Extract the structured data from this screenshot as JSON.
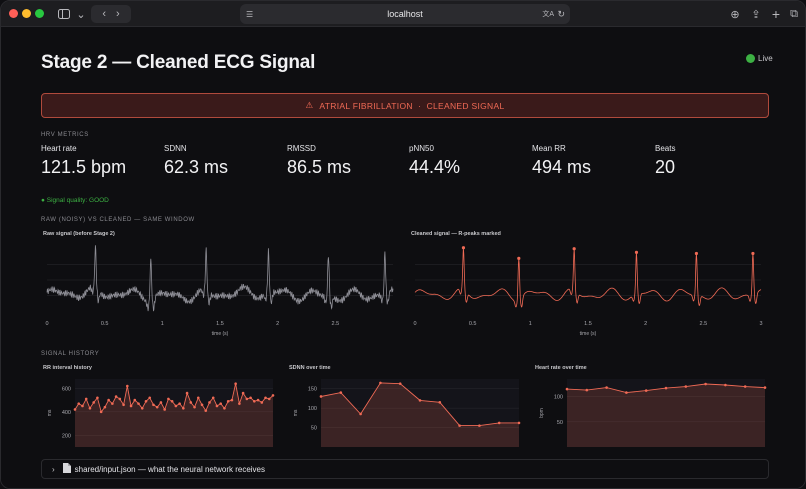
{
  "browser": {
    "url": "localhost",
    "traffic_lights": [
      "#ff5f57",
      "#febc2e",
      "#28c840"
    ]
  },
  "page": {
    "title": "Stage 2 — Cleaned ECG Signal",
    "live_label": "Live",
    "banner": {
      "icon": "⚠",
      "text": "ATRIAL FIBRILLATION  ·  CLEANED SIGNAL"
    },
    "hrv_section": "HRV METRICS",
    "metrics": [
      {
        "label": "Heart rate",
        "value": "121.5 bpm"
      },
      {
        "label": "SDNN",
        "value": "62.3 ms"
      },
      {
        "label": "RMSSD",
        "value": "86.5 ms"
      },
      {
        "label": "pNN50",
        "value": "44.4%"
      },
      {
        "label": "Mean RR",
        "value": "494 ms"
      },
      {
        "label": "Beats",
        "value": "20"
      }
    ],
    "signal_quality": "● Signal quality: GOOD",
    "raw_section": "RAW (NOISY) VS CLEANED — SAME WINDOW",
    "history_section": "SIGNAL HISTORY",
    "expander_label": "shared/input.json — what the neural network receives",
    "colors": {
      "accent": "#f06a55",
      "banner_bg": "#3a1a1a",
      "raw_line": "#8e8e96",
      "good": "#3cb043"
    }
  },
  "chart_data": [
    {
      "type": "line",
      "title": "Raw signal (before Stage 2)",
      "xlabel": "time (s)",
      "x_ticks": [
        "0",
        "0.5",
        "1",
        "1.5",
        "2",
        "2.5"
      ],
      "xlim": [
        0,
        3
      ],
      "series": [
        {
          "peaks_s": [
            0.42,
            0.9,
            1.38,
            1.92,
            2.44,
            2.93
          ]
        }
      ]
    },
    {
      "type": "line",
      "title": "Cleaned signal — R-peaks marked",
      "xlabel": "time (s)",
      "x_ticks": [
        "0",
        "0.5",
        "1",
        "1.5",
        "2",
        "2.5",
        "3"
      ],
      "xlim": [
        0,
        3
      ],
      "series": [
        {
          "peaks_s": [
            0.42,
            0.9,
            1.38,
            1.92,
            2.44,
            2.93
          ]
        }
      ]
    },
    {
      "type": "area",
      "title": "RR interval history",
      "ylabel": "ms",
      "y_ticks": [
        "200",
        "400",
        "600"
      ],
      "ylim": [
        100,
        680
      ],
      "series": [
        {
          "values": [
            420,
            470,
            450,
            510,
            430,
            480,
            520,
            400,
            440,
            500,
            470,
            530,
            510,
            460,
            620,
            450,
            500,
            470,
            430,
            490,
            520,
            460,
            440,
            480,
            420,
            510,
            490,
            450,
            470,
            430,
            560,
            480,
            440,
            520,
            460,
            410,
            480,
            520,
            450,
            470,
            430,
            490,
            500,
            640,
            470,
            560,
            510,
            520,
            490,
            500,
            480,
            520,
            510,
            540
          ]
        }
      ]
    },
    {
      "type": "area",
      "title": "SDNN over time",
      "ylabel": "ms",
      "y_ticks": [
        "50",
        "100",
        "150"
      ],
      "ylim": [
        0,
        175
      ],
      "series": [
        {
          "values": [
            130,
            140,
            85,
            165,
            163,
            120,
            115,
            55,
            55,
            62,
            62
          ]
        }
      ]
    },
    {
      "type": "area",
      "title": "Heart rate over time",
      "ylabel": "bpm",
      "y_ticks": [
        "50",
        "100"
      ],
      "ylim": [
        0,
        135
      ],
      "series": [
        {
          "values": [
            115,
            113,
            118,
            108,
            112,
            117,
            120,
            125,
            123,
            120,
            118
          ]
        }
      ]
    }
  ]
}
